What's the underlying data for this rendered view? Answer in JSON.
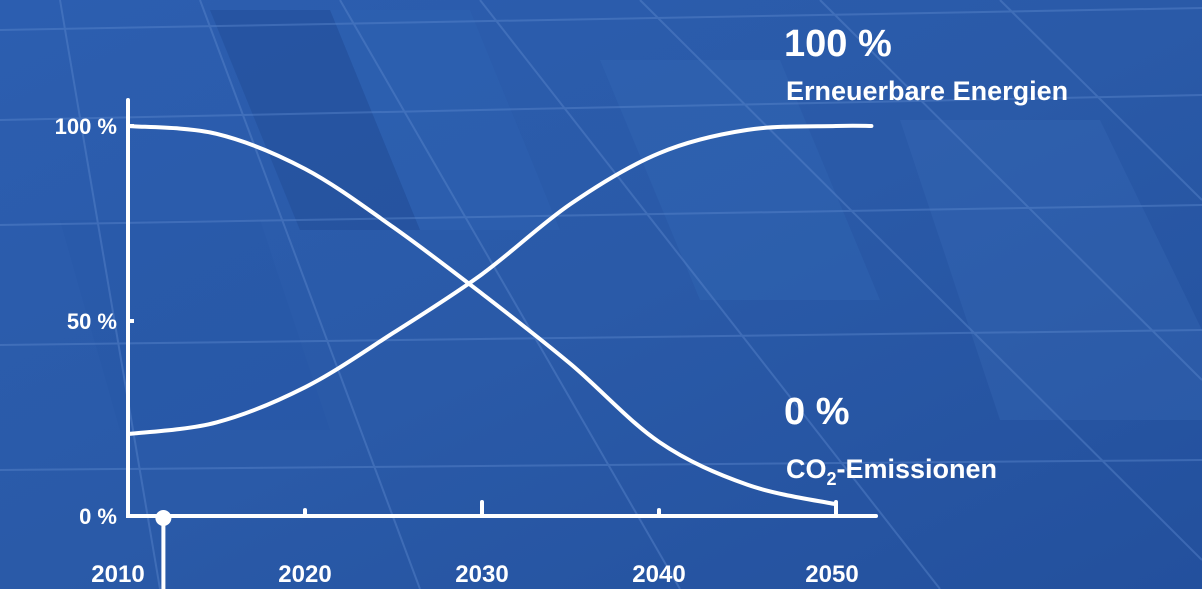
{
  "chart_data": {
    "type": "line",
    "x": [
      2010,
      2015,
      2020,
      2025,
      2030,
      2035,
      2040,
      2045,
      2050,
      2052
    ],
    "series": [
      {
        "name": "Erneuerbare Energien",
        "values": [
          21,
          24,
          33,
          47,
          62,
          80,
          93,
          99,
          100,
          100
        ],
        "end_value_label": "100 %",
        "end_label": "Erneuerbare Energien"
      },
      {
        "name": "CO2-Emissionen",
        "values": [
          100,
          98,
          89,
          74,
          57,
          39,
          19,
          8,
          3,
          0
        ],
        "end_value_label": "0 %",
        "end_label_prefix": "CO",
        "end_label_sub": "2",
        "end_label_suffix": "-Emissionen"
      }
    ],
    "x_ticks": [
      2010,
      2020,
      2030,
      2040,
      2050
    ],
    "x_tick_labels": [
      "2010",
      "2020",
      "2030",
      "2040",
      "2050"
    ],
    "y_ticks": [
      0,
      50,
      100
    ],
    "y_tick_labels": [
      "0 %",
      "50 %",
      "100 %"
    ],
    "xlim": [
      2010,
      2052
    ],
    "ylim": [
      0,
      100
    ],
    "current_year_marker": 2012,
    "grid": false,
    "title": "",
    "xlabel": "",
    "ylabel": "",
    "colors": {
      "background": "#2a5aa8",
      "background_dark": "#1f4d9a",
      "panel_light": "#3a6cba",
      "line": "#ffffff"
    }
  }
}
